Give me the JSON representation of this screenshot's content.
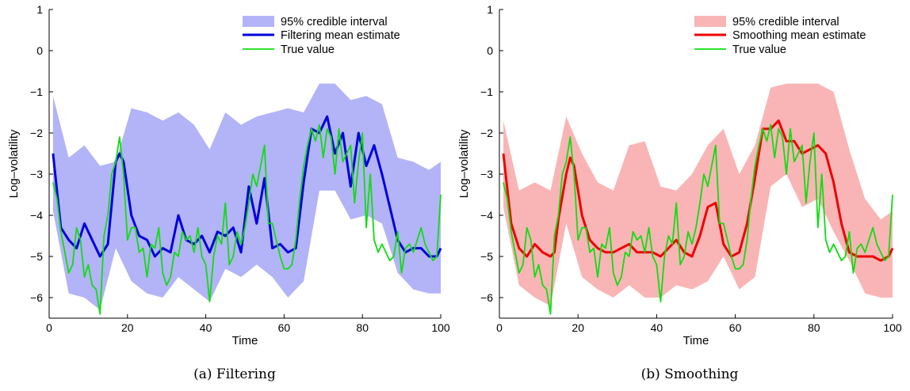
{
  "chart_data": [
    {
      "type": "line",
      "caption": "(a)  Filtering",
      "xlabel": "Time",
      "ylabel": "Log–volatility",
      "xlim": [
        0,
        100
      ],
      "ylim": [
        -6.5,
        1
      ],
      "xticks": [
        "0",
        "20",
        "40",
        "60",
        "80",
        "100"
      ],
      "yticks": [
        "−6",
        "−5",
        "−4",
        "−3",
        "−2",
        "−1",
        "0",
        "1"
      ],
      "legend_position": "top-right",
      "band": {
        "name": "95% credible interval",
        "color": "#b3b3f7",
        "x": [
          1,
          5,
          9,
          13,
          17,
          21,
          25,
          29,
          33,
          37,
          41,
          45,
          49,
          53,
          57,
          61,
          65,
          69,
          73,
          77,
          81,
          85,
          89,
          93,
          97,
          100
        ],
        "upper": [
          -1.1,
          -2.6,
          -2.3,
          -2.8,
          -2.7,
          -1.4,
          -1.5,
          -1.7,
          -1.5,
          -1.8,
          -2.4,
          -1.5,
          -1.8,
          -1.6,
          -1.5,
          -1.4,
          -1.5,
          -0.8,
          -0.8,
          -1.2,
          -1.1,
          -1.3,
          -2.6,
          -2.7,
          -2.9,
          -2.7
        ],
        "lower": [
          -3.9,
          -5.9,
          -6.0,
          -6.3,
          -4.8,
          -5.6,
          -5.9,
          -6.0,
          -5.5,
          -5.8,
          -6.1,
          -5.3,
          -5.5,
          -5.2,
          -5.5,
          -6.0,
          -5.6,
          -3.4,
          -3.4,
          -4.1,
          -4.0,
          -4.2,
          -5.4,
          -5.8,
          -5.9,
          -5.9
        ]
      },
      "series": [
        {
          "name": "Filtering mean estimate",
          "color": "#0000dd",
          "width": 3,
          "x": [
            1,
            3,
            5,
            7,
            9,
            11,
            13,
            15,
            17,
            18,
            19,
            21,
            23,
            25,
            27,
            29,
            31,
            33,
            35,
            37,
            39,
            41,
            43,
            45,
            47,
            49,
            51,
            53,
            55,
            57,
            59,
            61,
            63,
            65,
            67,
            69,
            71,
            73,
            75,
            77,
            79,
            81,
            83,
            85,
            87,
            89,
            91,
            93,
            95,
            97,
            99,
            100
          ],
          "y": [
            -2.5,
            -4.3,
            -4.6,
            -4.8,
            -4.2,
            -4.6,
            -5.0,
            -4.7,
            -2.7,
            -2.5,
            -2.7,
            -4.0,
            -4.5,
            -4.6,
            -5.0,
            -4.8,
            -4.9,
            -4.0,
            -4.6,
            -4.7,
            -4.5,
            -4.9,
            -4.4,
            -4.5,
            -4.3,
            -4.9,
            -3.3,
            -4.2,
            -3.1,
            -4.8,
            -4.7,
            -4.9,
            -4.8,
            -3.2,
            -1.9,
            -2.0,
            -1.6,
            -2.5,
            -2.0,
            -3.3,
            -2.0,
            -2.8,
            -2.3,
            -3.0,
            -3.8,
            -4.6,
            -4.9,
            -4.8,
            -4.8,
            -5.0,
            -5.0,
            -4.8
          ]
        },
        {
          "name": "True value",
          "color": "#10dd10",
          "width": 1.8,
          "x": [
            1,
            2,
            3,
            4,
            5,
            6,
            7,
            8,
            9,
            10,
            11,
            12,
            13,
            14,
            15,
            16,
            17,
            18,
            19,
            20,
            21,
            22,
            23,
            24,
            25,
            26,
            27,
            28,
            29,
            30,
            31,
            32,
            33,
            34,
            35,
            36,
            37,
            38,
            39,
            40,
            41,
            42,
            43,
            44,
            45,
            46,
            47,
            48,
            49,
            50,
            51,
            52,
            53,
            54,
            55,
            56,
            57,
            58,
            59,
            60,
            61,
            62,
            63,
            64,
            65,
            66,
            67,
            68,
            69,
            70,
            71,
            72,
            73,
            74,
            75,
            76,
            77,
            78,
            79,
            80,
            81,
            82,
            83,
            84,
            85,
            86,
            87,
            88,
            89,
            90,
            91,
            92,
            93,
            94,
            95,
            96,
            97,
            98,
            99,
            100
          ],
          "y": [
            -3.2,
            -3.6,
            -4.4,
            -4.9,
            -5.4,
            -5.2,
            -4.3,
            -4.6,
            -5.5,
            -5.2,
            -5.7,
            -5.8,
            -6.4,
            -4.5,
            -4.0,
            -3.0,
            -2.7,
            -2.1,
            -3.0,
            -4.6,
            -4.3,
            -4.3,
            -4.9,
            -4.8,
            -5.5,
            -4.7,
            -4.8,
            -4.3,
            -5.4,
            -5.7,
            -5.5,
            -4.9,
            -5.0,
            -4.4,
            -4.6,
            -4.5,
            -4.9,
            -4.3,
            -5.0,
            -5.2,
            -6.1,
            -5.0,
            -4.5,
            -4.7,
            -3.7,
            -5.2,
            -5.0,
            -4.4,
            -4.7,
            -4.3,
            -3.7,
            -3.0,
            -3.3,
            -2.8,
            -2.3,
            -4.2,
            -4.2,
            -4.6,
            -5.0,
            -5.3,
            -5.3,
            -5.2,
            -4.6,
            -3.6,
            -2.8,
            -2.3,
            -1.9,
            -2.2,
            -1.8,
            -2.6,
            -1.9,
            -2.1,
            -3.0,
            -1.9,
            -2.7,
            -2.5,
            -2.3,
            -3.7,
            -2.7,
            -2.0,
            -4.3,
            -3.0,
            -4.6,
            -4.9,
            -4.7,
            -4.9,
            -5.1,
            -5.0,
            -4.4,
            -5.4,
            -4.8,
            -4.7,
            -4.9,
            -4.6,
            -4.3,
            -4.7,
            -4.9,
            -5.1,
            -5.0,
            -3.5
          ]
        }
      ]
    },
    {
      "type": "line",
      "caption": "(b)  Smoothing",
      "xlabel": "Time",
      "ylabel": "Log–volatility",
      "xlim": [
        0,
        100
      ],
      "ylim": [
        -6.5,
        1
      ],
      "xticks": [
        "0",
        "20",
        "40",
        "60",
        "80",
        "100"
      ],
      "yticks": [
        "−6",
        "−5",
        "−4",
        "−3",
        "−2",
        "−1",
        "0",
        "1"
      ],
      "legend_position": "top-right",
      "band": {
        "name": "95% credible interval",
        "color": "#f9b5b5",
        "x": [
          1,
          5,
          9,
          13,
          17,
          21,
          25,
          29,
          33,
          37,
          41,
          45,
          49,
          53,
          57,
          61,
          65,
          69,
          73,
          77,
          81,
          85,
          89,
          93,
          97,
          100
        ],
        "upper": [
          -1.7,
          -3.4,
          -3.2,
          -3.4,
          -1.6,
          -2.5,
          -3.2,
          -3.4,
          -2.3,
          -2.2,
          -3.3,
          -3.4,
          -3.0,
          -2.3,
          -1.9,
          -3.0,
          -2.3,
          -0.9,
          -0.8,
          -0.8,
          -0.8,
          -1.0,
          -2.4,
          -3.6,
          -4.1,
          -3.9
        ],
        "lower": [
          -3.8,
          -5.7,
          -6.0,
          -6.2,
          -4.2,
          -5.5,
          -5.8,
          -6.0,
          -5.7,
          -6.0,
          -6.0,
          -5.7,
          -5.8,
          -5.6,
          -5.0,
          -5.8,
          -5.5,
          -3.3,
          -3.0,
          -3.8,
          -3.6,
          -4.4,
          -5.1,
          -5.9,
          -6.0,
          -6.0
        ]
      },
      "series": [
        {
          "name": "Smoothing mean estimate",
          "color": "#ee0000",
          "width": 3,
          "x": [
            1,
            3,
            5,
            7,
            9,
            11,
            13,
            14,
            15,
            17,
            18,
            19,
            21,
            23,
            25,
            27,
            29,
            31,
            33,
            35,
            37,
            39,
            41,
            43,
            45,
            47,
            49,
            51,
            53,
            55,
            57,
            59,
            61,
            63,
            65,
            67,
            69,
            71,
            73,
            75,
            77,
            79,
            81,
            83,
            85,
            87,
            89,
            91,
            93,
            95,
            97,
            99,
            100
          ],
          "y": [
            -2.5,
            -4.2,
            -4.8,
            -5.0,
            -4.7,
            -4.9,
            -5.0,
            -4.9,
            -4.1,
            -3.0,
            -2.6,
            -2.8,
            -4.0,
            -4.6,
            -4.8,
            -4.9,
            -4.9,
            -4.8,
            -4.7,
            -4.9,
            -4.9,
            -4.9,
            -5.0,
            -4.8,
            -4.6,
            -4.9,
            -5.0,
            -4.5,
            -3.8,
            -3.7,
            -4.7,
            -5.0,
            -4.9,
            -4.2,
            -3.1,
            -1.9,
            -1.9,
            -1.7,
            -2.2,
            -2.2,
            -2.5,
            -2.4,
            -2.3,
            -2.5,
            -3.2,
            -4.2,
            -4.9,
            -5.0,
            -5.0,
            -5.0,
            -5.1,
            -5.0,
            -4.8
          ]
        },
        {
          "name": "True value",
          "color": "#10dd10",
          "width": 1.8,
          "x": [
            1,
            2,
            3,
            4,
            5,
            6,
            7,
            8,
            9,
            10,
            11,
            12,
            13,
            14,
            15,
            16,
            17,
            18,
            19,
            20,
            21,
            22,
            23,
            24,
            25,
            26,
            27,
            28,
            29,
            30,
            31,
            32,
            33,
            34,
            35,
            36,
            37,
            38,
            39,
            40,
            41,
            42,
            43,
            44,
            45,
            46,
            47,
            48,
            49,
            50,
            51,
            52,
            53,
            54,
            55,
            56,
            57,
            58,
            59,
            60,
            61,
            62,
            63,
            64,
            65,
            66,
            67,
            68,
            69,
            70,
            71,
            72,
            73,
            74,
            75,
            76,
            77,
            78,
            79,
            80,
            81,
            82,
            83,
            84,
            85,
            86,
            87,
            88,
            89,
            90,
            91,
            92,
            93,
            94,
            95,
            96,
            97,
            98,
            99,
            100
          ],
          "y": [
            -3.2,
            -3.6,
            -4.4,
            -4.9,
            -5.4,
            -5.2,
            -4.3,
            -4.6,
            -5.5,
            -5.2,
            -5.7,
            -5.8,
            -6.4,
            -4.5,
            -4.0,
            -3.0,
            -2.7,
            -2.1,
            -3.0,
            -4.6,
            -4.3,
            -4.3,
            -4.9,
            -4.8,
            -5.5,
            -4.7,
            -4.8,
            -4.3,
            -5.4,
            -5.7,
            -5.5,
            -4.9,
            -5.0,
            -4.4,
            -4.6,
            -4.5,
            -4.9,
            -4.3,
            -5.0,
            -5.2,
            -6.1,
            -5.0,
            -4.5,
            -4.7,
            -3.7,
            -5.2,
            -5.0,
            -4.4,
            -4.7,
            -4.3,
            -3.7,
            -3.0,
            -3.3,
            -2.8,
            -2.3,
            -4.2,
            -4.2,
            -4.6,
            -5.0,
            -5.3,
            -5.3,
            -5.2,
            -4.6,
            -3.6,
            -2.8,
            -2.3,
            -1.9,
            -2.2,
            -1.8,
            -2.6,
            -1.9,
            -2.1,
            -3.0,
            -1.9,
            -2.7,
            -2.5,
            -2.3,
            -3.7,
            -2.7,
            -2.0,
            -4.3,
            -3.0,
            -4.6,
            -4.9,
            -4.7,
            -4.9,
            -5.1,
            -5.0,
            -4.4,
            -5.4,
            -4.8,
            -4.7,
            -4.9,
            -4.6,
            -4.3,
            -4.7,
            -4.9,
            -5.1,
            -5.0,
            -3.5
          ]
        }
      ]
    }
  ]
}
